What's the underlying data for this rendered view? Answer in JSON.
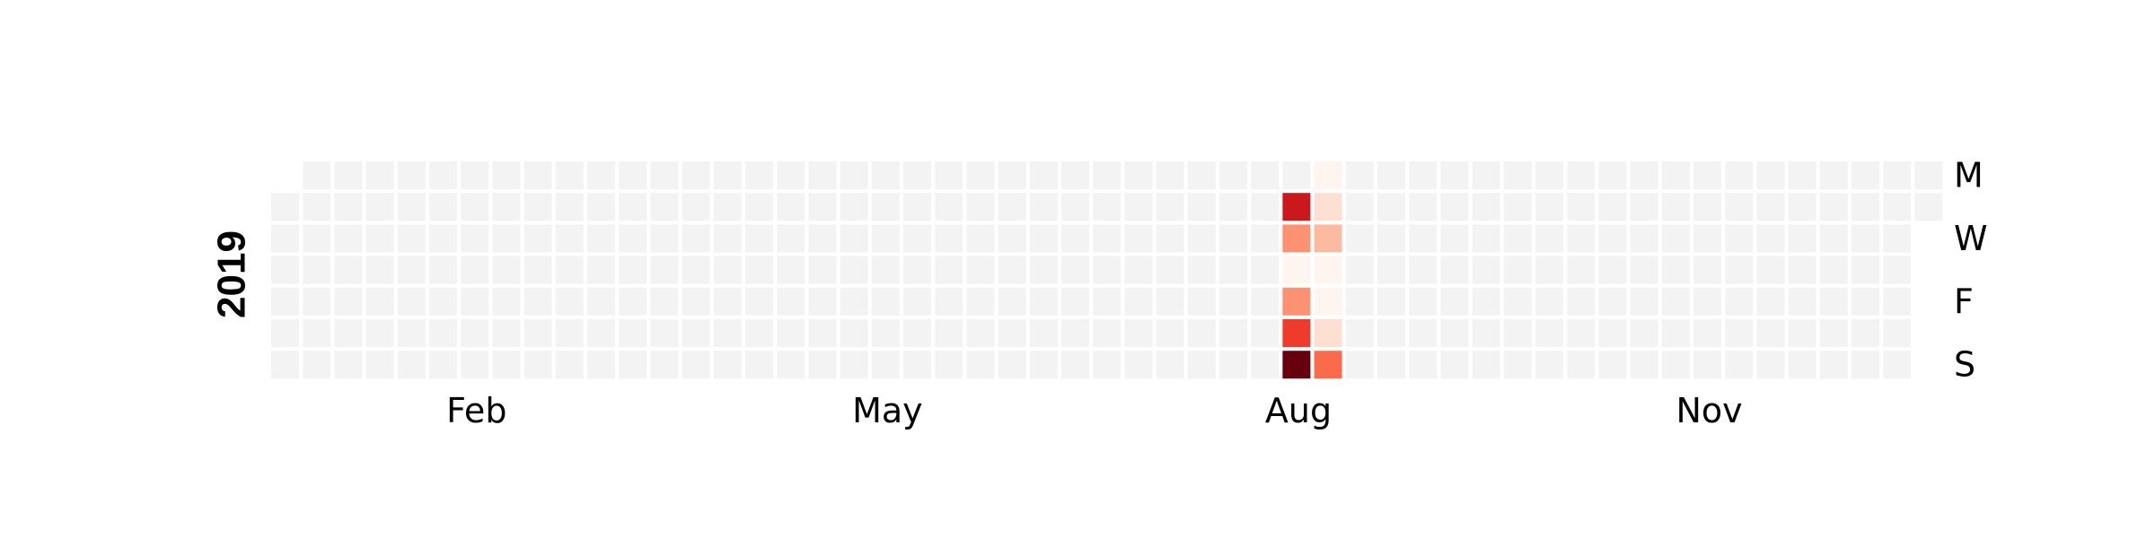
{
  "chart_data": {
    "type": "heatmap",
    "year": "2019",
    "week_start": "Monday",
    "first_day_weekday_index": 1,
    "days_in_year": 365,
    "day_labels": [
      {
        "row": 0,
        "label": "M"
      },
      {
        "row": 2,
        "label": "W"
      },
      {
        "row": 4,
        "label": "F"
      },
      {
        "row": 6,
        "label": "S"
      }
    ],
    "month_labels": [
      {
        "week": 6.5,
        "label": "Feb"
      },
      {
        "week": 19.5,
        "label": "May"
      },
      {
        "week": 32.5,
        "label": "Aug"
      },
      {
        "week": 45.5,
        "label": "Nov"
      }
    ],
    "colors": {
      "empty": "#f3f3f3",
      "scale": [
        "#fff5f0",
        "#fee0d2",
        "#fcbba1",
        "#fc9272",
        "#fb6a4a",
        "#ef3b2c",
        "#cb181d",
        "#67000d"
      ]
    },
    "values": [
      {
        "date": "2019-08-13",
        "level": 6
      },
      {
        "date": "2019-08-14",
        "level": 3
      },
      {
        "date": "2019-08-15",
        "level": 0
      },
      {
        "date": "2019-08-16",
        "level": 3
      },
      {
        "date": "2019-08-17",
        "level": 5
      },
      {
        "date": "2019-08-18",
        "level": 7
      },
      {
        "date": "2019-08-19",
        "level": 0
      },
      {
        "date": "2019-08-20",
        "level": 1
      },
      {
        "date": "2019-08-21",
        "level": 2
      },
      {
        "date": "2019-08-22",
        "level": 0
      },
      {
        "date": "2019-08-23",
        "level": 0
      },
      {
        "date": "2019-08-24",
        "level": 1
      },
      {
        "date": "2019-08-25",
        "level": 4
      }
    ],
    "grid": false,
    "legend": "none"
  }
}
